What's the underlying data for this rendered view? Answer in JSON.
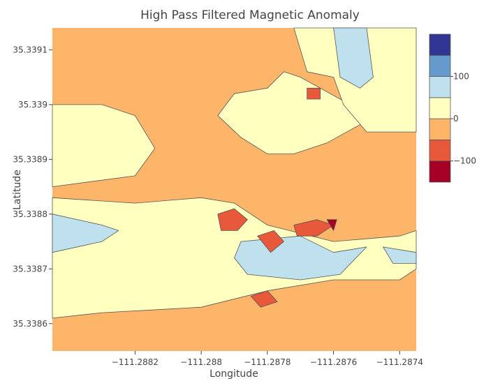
{
  "chart_data": {
    "type": "contour",
    "title": "High Pass Filtered Magnetic Anomaly",
    "xlabel": "Longitude",
    "ylabel": "Latitude",
    "xlim": [
      -111.28845,
      -111.28735
    ],
    "ylim": [
      35.33855,
      35.33914
    ],
    "x_ticks": [
      {
        "value": -111.2882,
        "label": "−111.2882"
      },
      {
        "value": -111.288,
        "label": "−111.288"
      },
      {
        "value": -111.2878,
        "label": "−111.2878"
      },
      {
        "value": -111.2876,
        "label": "−111.2876"
      },
      {
        "value": -111.2874,
        "label": "−111.2874"
      }
    ],
    "y_ticks": [
      {
        "value": 35.3386,
        "label": "35.3386"
      },
      {
        "value": 35.3387,
        "label": "35.3387"
      },
      {
        "value": 35.3388,
        "label": "35.3388"
      },
      {
        "value": 35.3389,
        "label": "35.3389"
      },
      {
        "value": 35.339,
        "label": "35.339"
      },
      {
        "value": 35.3391,
        "label": "35.3391"
      }
    ],
    "colorscale": {
      "bands": [
        {
          "range": [
            -150,
            -100
          ],
          "color": "#a50026"
        },
        {
          "range": [
            -100,
            -50
          ],
          "color": "#e8583a"
        },
        {
          "range": [
            -50,
            0
          ],
          "color": "#fdb56a"
        },
        {
          "range": [
            0,
            50
          ],
          "color": "#ffffbf"
        },
        {
          "range": [
            50,
            100
          ],
          "color": "#bfe1ee"
        },
        {
          "range": [
            100,
            150
          ],
          "color": "#6699cc"
        },
        {
          "range": [
            150,
            200
          ],
          "color": "#313695"
        }
      ],
      "ticks": [
        {
          "value": 100,
          "label": "100"
        },
        {
          "value": 0,
          "label": "0"
        },
        {
          "value": -100,
          "label": "−100"
        }
      ]
    },
    "background_level": -25,
    "regions": [
      {
        "level": 25,
        "pts": [
          [
            -111.28845,
            35.339
          ],
          [
            -111.2883,
            35.339
          ],
          [
            -111.2882,
            35.33898
          ],
          [
            -111.28814,
            35.33892
          ],
          [
            -111.2882,
            35.33887
          ],
          [
            -111.28845,
            35.33885
          ]
        ]
      },
      {
        "level": 25,
        "pts": [
          [
            -111.28795,
            35.33898
          ],
          [
            -111.2879,
            35.33902
          ],
          [
            -111.2878,
            35.33903
          ],
          [
            -111.28775,
            35.33906
          ],
          [
            -111.2877,
            35.33905
          ],
          [
            -111.28755,
            35.339
          ],
          [
            -111.2875,
            35.33897
          ],
          [
            -111.28762,
            35.33893
          ],
          [
            -111.28772,
            35.33891
          ],
          [
            -111.2878,
            35.33891
          ],
          [
            -111.28788,
            35.33894
          ]
        ]
      },
      {
        "level": 25,
        "pts": [
          [
            -111.28772,
            35.33914
          ],
          [
            -111.2874,
            35.33914
          ],
          [
            -111.28735,
            35.33914
          ],
          [
            -111.28735,
            35.33895
          ],
          [
            -111.2875,
            35.33895
          ],
          [
            -111.28757,
            35.339
          ],
          [
            -111.2876,
            35.33905
          ],
          [
            -111.28768,
            35.33906
          ]
        ]
      },
      {
        "level": 25,
        "pts": [
          [
            -111.28845,
            35.33883
          ],
          [
            -111.2882,
            35.33882
          ],
          [
            -111.288,
            35.33883
          ],
          [
            -111.2879,
            35.33882
          ],
          [
            -111.2878,
            35.33878
          ],
          [
            -111.2876,
            35.33875
          ],
          [
            -111.2874,
            35.33876
          ],
          [
            -111.28735,
            35.33877
          ],
          [
            -111.28735,
            35.3387
          ],
          [
            -111.2874,
            35.33868
          ],
          [
            -111.2876,
            35.33868
          ],
          [
            -111.2878,
            35.33866
          ],
          [
            -111.288,
            35.33863
          ],
          [
            -111.2883,
            35.33862
          ],
          [
            -111.28845,
            35.33861
          ]
        ]
      },
      {
        "level": 75,
        "pts": [
          [
            -111.28845,
            35.3388
          ],
          [
            -111.2883,
            35.33878
          ],
          [
            -111.28825,
            35.33877
          ],
          [
            -111.2883,
            35.33875
          ],
          [
            -111.28845,
            35.33873
          ]
        ]
      },
      {
        "level": 75,
        "pts": [
          [
            -111.28788,
            35.33875
          ],
          [
            -111.2877,
            35.33876
          ],
          [
            -111.2876,
            35.33873
          ],
          [
            -111.2875,
            35.33874
          ],
          [
            -111.28758,
            35.33869
          ],
          [
            -111.2877,
            35.33868
          ],
          [
            -111.28786,
            35.33869
          ],
          [
            -111.2879,
            35.33872
          ]
        ]
      },
      {
        "level": 75,
        "pts": [
          [
            -111.2876,
            35.33914
          ],
          [
            -111.2875,
            35.33914
          ],
          [
            -111.28748,
            35.33905
          ],
          [
            -111.28752,
            35.33903
          ],
          [
            -111.28758,
            35.33905
          ]
        ]
      },
      {
        "level": 75,
        "pts": [
          [
            -111.28745,
            35.33874
          ],
          [
            -111.28735,
            35.33873
          ],
          [
            -111.28735,
            35.33871
          ],
          [
            -111.28742,
            35.33871
          ]
        ]
      },
      {
        "level": -75,
        "pts": [
          [
            -111.28795,
            35.3388
          ],
          [
            -111.2879,
            35.33881
          ],
          [
            -111.28786,
            35.33879
          ],
          [
            -111.28789,
            35.33877
          ],
          [
            -111.28794,
            35.33877
          ]
        ]
      },
      {
        "level": -75,
        "pts": [
          [
            -111.28772,
            35.33878
          ],
          [
            -111.28765,
            35.33879
          ],
          [
            -111.2876,
            35.33878
          ],
          [
            -111.28765,
            35.33876
          ],
          [
            -111.28771,
            35.33876
          ]
        ]
      },
      {
        "level": -75,
        "pts": [
          [
            -111.28783,
            35.33876
          ],
          [
            -111.28778,
            35.33877
          ],
          [
            -111.28775,
            35.33875
          ],
          [
            -111.28779,
            35.33873
          ]
        ]
      },
      {
        "level": -75,
        "pts": [
          [
            -111.28785,
            35.33865
          ],
          [
            -111.2878,
            35.33866
          ],
          [
            -111.28777,
            35.33864
          ],
          [
            -111.28782,
            35.33863
          ]
        ]
      },
      {
        "level": -75,
        "pts": [
          [
            -111.28768,
            35.33903
          ],
          [
            -111.28764,
            35.33903
          ],
          [
            -111.28764,
            35.33901
          ],
          [
            -111.28768,
            35.33901
          ]
        ]
      },
      {
        "level": -125,
        "pts": [
          [
            -111.28762,
            35.33879
          ],
          [
            -111.28759,
            35.33879
          ],
          [
            -111.2876,
            35.33877
          ]
        ]
      }
    ]
  }
}
